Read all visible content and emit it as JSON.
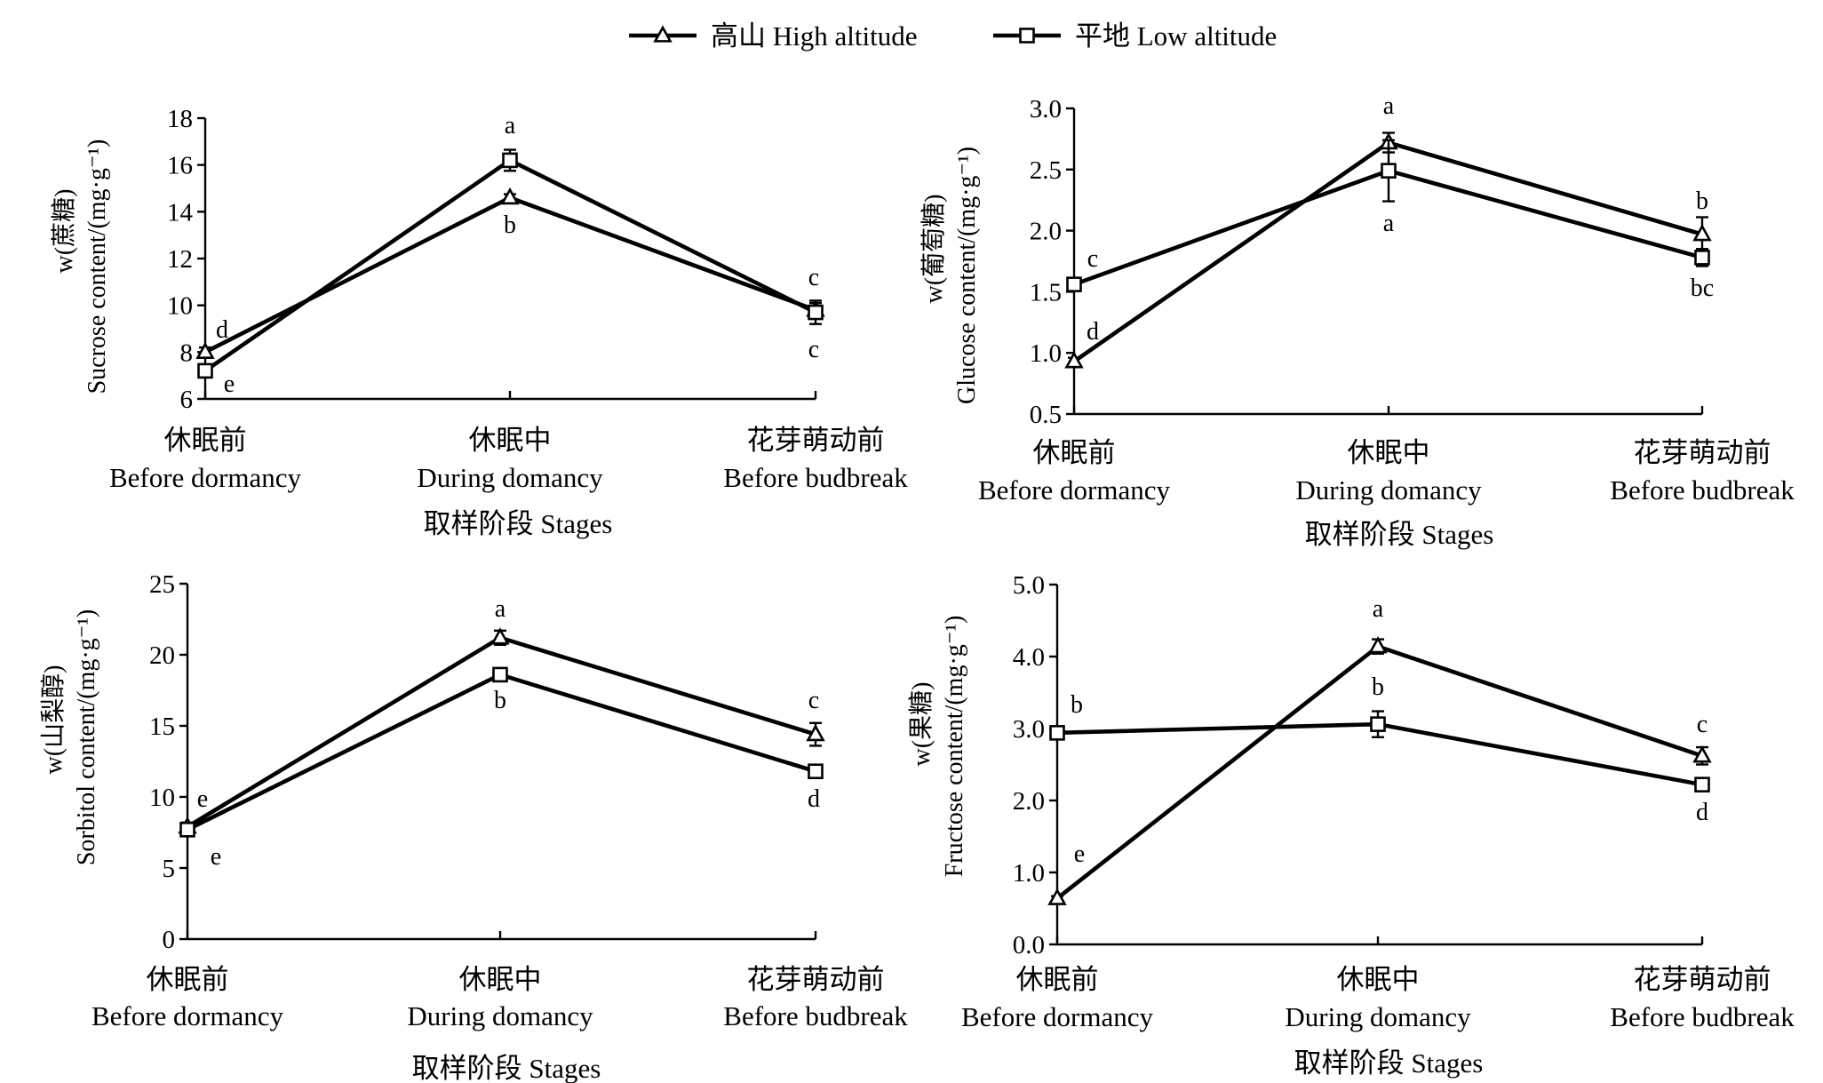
{
  "legend": {
    "items": [
      {
        "series": "high",
        "label": "高山 High altitude",
        "marker": "triangle"
      },
      {
        "series": "low",
        "label": "平地 Low altitude",
        "marker": "square"
      }
    ]
  },
  "chart_data": [
    {
      "id": "sucrose",
      "type": "line",
      "title": "",
      "ylabel_top": "w(蔗糖)",
      "ylabel": "Sucrose content/(mg·g⁻¹)",
      "categories": [
        {
          "cn": "休眠前",
          "en": "Before dormancy"
        },
        {
          "cn": "休眠中",
          "en": "During domancy"
        },
        {
          "cn": "花芽萌动前",
          "en": "Before budbreak"
        }
      ],
      "xlabel": "取样阶段 Stages",
      "ylim": [
        6,
        18
      ],
      "yticks": [
        "6",
        "8",
        "10",
        "12",
        "14",
        "16",
        "18"
      ],
      "series": [
        {
          "key": "high",
          "name": "高山 High altitude",
          "marker": "triangle",
          "values": [
            8.0,
            14.6,
            9.8
          ],
          "errors": [
            0.2,
            0.15,
            0.3
          ],
          "letters": [
            "d",
            "b",
            "c"
          ]
        },
        {
          "key": "low",
          "name": "平地 Low altitude",
          "marker": "square",
          "values": [
            7.2,
            16.2,
            9.7
          ],
          "errors": [
            0.2,
            0.45,
            0.5
          ],
          "letters": [
            "e",
            "a",
            "c"
          ]
        }
      ]
    },
    {
      "id": "glucose",
      "type": "line",
      "title": "",
      "ylabel_top": "w(葡萄糖)",
      "ylabel": "Glucose content/(mg·g⁻¹)",
      "categories": [
        {
          "cn": "休眠前",
          "en": "Before dormancy"
        },
        {
          "cn": "休眠中",
          "en": "During domancy"
        },
        {
          "cn": "花芽萌动前",
          "en": "Before budbreak"
        }
      ],
      "xlabel": "取样阶段 Stages",
      "ylim": [
        0.5,
        3.0
      ],
      "yticks": [
        "0.5",
        "1.0",
        "1.5",
        "2.0",
        "2.5",
        "3.0"
      ],
      "series": [
        {
          "key": "high",
          "name": "高山 High altitude",
          "marker": "triangle",
          "values": [
            0.93,
            2.72,
            1.97
          ],
          "errors": [
            0.03,
            0.08,
            0.14
          ],
          "letters": [
            "d",
            "a",
            "b"
          ]
        },
        {
          "key": "low",
          "name": "平地 Low altitude",
          "marker": "square",
          "values": [
            1.56,
            2.49,
            1.78
          ],
          "errors": [
            0.04,
            0.25,
            0.07
          ],
          "letters": [
            "c",
            "a",
            "bc"
          ]
        }
      ]
    },
    {
      "id": "sorbitol",
      "type": "line",
      "title": "",
      "ylabel_top": "w(山梨醇)",
      "ylabel": "Sorbitol content/(mg·g⁻¹)",
      "categories": [
        {
          "cn": "休眠前",
          "en": "Before dormancy"
        },
        {
          "cn": "休眠中",
          "en": "During domancy"
        },
        {
          "cn": "花芽萌动前",
          "en": "Before budbreak"
        }
      ],
      "xlabel": "取样阶段 Stages",
      "ylim": [
        0,
        25
      ],
      "yticks": [
        "0",
        "5",
        "10",
        "15",
        "20",
        "25"
      ],
      "series": [
        {
          "key": "high",
          "name": "高山 High altitude",
          "marker": "triangle",
          "values": [
            7.9,
            21.2,
            14.4
          ],
          "errors": [
            0.3,
            0.5,
            0.8
          ],
          "letters": [
            "e",
            "a",
            "c"
          ]
        },
        {
          "key": "low",
          "name": "平地 Low altitude",
          "marker": "square",
          "values": [
            7.7,
            18.6,
            11.8
          ],
          "errors": [
            0.3,
            0.3,
            0.3
          ],
          "letters": [
            "e",
            "b",
            "d"
          ]
        }
      ]
    },
    {
      "id": "fructose",
      "type": "line",
      "title": "",
      "ylabel_top": "w(果糖)",
      "ylabel": "Fructose content/(mg·g⁻¹)",
      "categories": [
        {
          "cn": "休眠前",
          "en": "Before dormancy"
        },
        {
          "cn": "休眠中",
          "en": "During domancy"
        },
        {
          "cn": "花芽萌动前",
          "en": "Before budbreak"
        }
      ],
      "xlabel": "取样阶段 Stages",
      "ylim": [
        0.0,
        5.0
      ],
      "yticks": [
        "0.0",
        "1.0",
        "2.0",
        "3.0",
        "4.0",
        "5.0"
      ],
      "series": [
        {
          "key": "high",
          "name": "高山 High altitude",
          "marker": "triangle",
          "values": [
            0.64,
            4.14,
            2.62
          ],
          "errors": [
            0.03,
            0.1,
            0.12
          ],
          "letters": [
            "e",
            "a",
            "c"
          ]
        },
        {
          "key": "low",
          "name": "平地 Low altitude",
          "marker": "square",
          "values": [
            2.94,
            3.06,
            2.22
          ],
          "errors": [
            0.05,
            0.18,
            0.06
          ],
          "letters": [
            "b",
            "b",
            "d"
          ]
        }
      ]
    }
  ]
}
